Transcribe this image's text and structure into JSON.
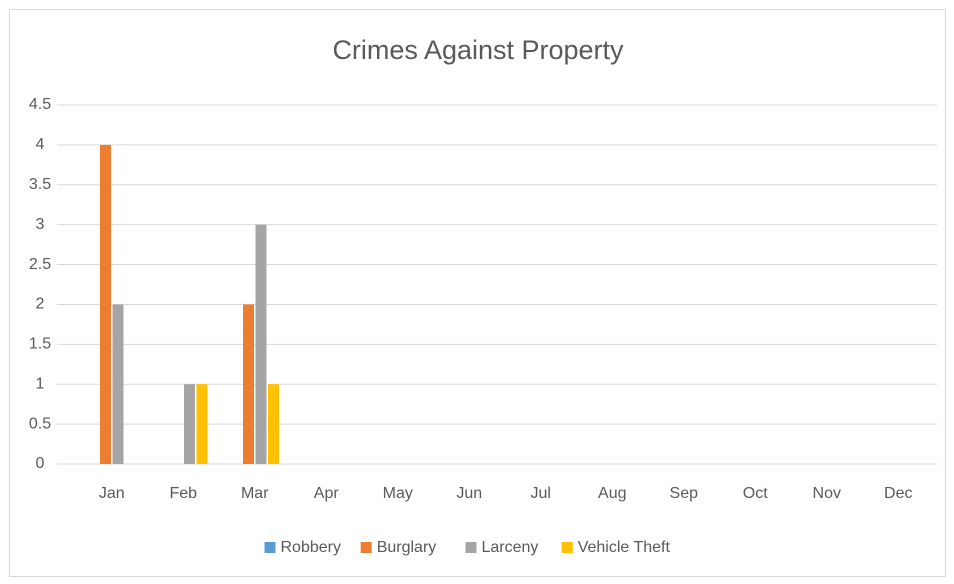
{
  "chart_data": {
    "type": "bar",
    "title": "Crimes Against Property",
    "categories": [
      "Jan",
      "Feb",
      "Mar",
      "Apr",
      "May",
      "Jun",
      "Jul",
      "Aug",
      "Sep",
      "Oct",
      "Nov",
      "Dec"
    ],
    "series": [
      {
        "name": "Robbery",
        "color": "#5b9bd5",
        "values": [
          0,
          0,
          0,
          null,
          null,
          null,
          null,
          null,
          null,
          null,
          null,
          null
        ]
      },
      {
        "name": "Burglary",
        "color": "#ed7d31",
        "values": [
          4,
          0,
          2,
          null,
          null,
          null,
          null,
          null,
          null,
          null,
          null,
          null
        ]
      },
      {
        "name": "Larceny",
        "color": "#a5a5a5",
        "values": [
          2,
          1,
          3,
          null,
          null,
          null,
          null,
          null,
          null,
          null,
          null,
          null
        ]
      },
      {
        "name": "Vehicle Theft",
        "color": "#ffc000",
        "values": [
          0,
          1,
          1,
          null,
          null,
          null,
          null,
          null,
          null,
          null,
          null,
          null
        ]
      }
    ],
    "ylim": [
      0,
      4.5
    ],
    "yticks": [
      0,
      0.5,
      1,
      1.5,
      2,
      2.5,
      3,
      3.5,
      4,
      4.5
    ],
    "grid": true,
    "legend": "bottom"
  }
}
